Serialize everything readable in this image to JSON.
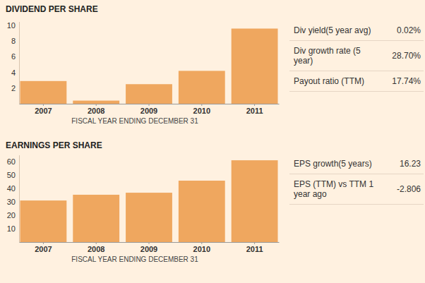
{
  "chart_data": [
    {
      "type": "bar",
      "title": "DIVIDEND PER SHARE",
      "x_label": "FISCAL YEAR ENDING DECEMBER 31",
      "categories": [
        "2007",
        "2008",
        "2009",
        "2010",
        "2011"
      ],
      "values": [
        2.9,
        0.4,
        2.5,
        4.2,
        9.6
      ],
      "color": "#efa75f",
      "ylim": [
        0,
        10.5
      ],
      "yticks": [
        2,
        4,
        6,
        8,
        10
      ],
      "annotations": [
        {
          "label": "Div yield(5 year avg)",
          "value": "0.02%"
        },
        {
          "label": "Div growth rate (5 year)",
          "value": "28.70%"
        },
        {
          "label": "Payout ratio (TTM)",
          "value": "17.74%"
        }
      ]
    },
    {
      "type": "bar",
      "title": "EARNINGS PER SHARE",
      "x_label": "FISCAL YEAR ENDING DECEMBER 31",
      "categories": [
        "2007",
        "2008",
        "2009",
        "2010",
        "2011"
      ],
      "values": [
        31,
        35.3,
        36.8,
        45.8,
        61
      ],
      "color": "#efa75f",
      "ylim": [
        0,
        65
      ],
      "yticks": [
        10,
        20,
        30,
        40,
        50,
        60
      ],
      "annotations": [
        {
          "label": "EPS growth(5 years)",
          "value": "16.23"
        },
        {
          "label": "EPS (TTM) vs TTM 1 year ago",
          "value": "-2.806"
        }
      ]
    }
  ]
}
